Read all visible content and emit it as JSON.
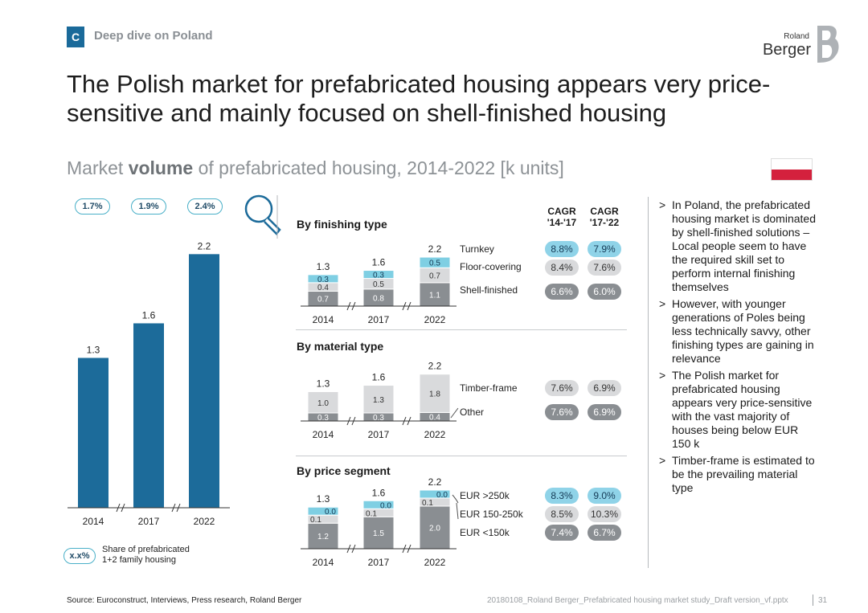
{
  "header": {
    "section_letter": "C",
    "section_title": "Deep dive on Poland",
    "logo_top": "Roland",
    "logo_bottom": "Berger",
    "title": "The Polish market for prefabricated housing appears very price-sensitive and mainly focused on shell-finished housing",
    "subtitle_pre": "Market ",
    "subtitle_bold": "volume",
    "subtitle_post": " of prefabricated housing, 2014-2022 [k units]"
  },
  "colors": {
    "accent": "#1a6a9a",
    "bar": "#1c6b9a",
    "turquoise": "#7fcfe3",
    "light_grey": "#d9dadc",
    "mid_grey": "#8a8e92",
    "flag_red": "#d4213d"
  },
  "legend": {
    "pill": "x.x%",
    "text_line1": "Share of prefabricated",
    "text_line2": "1+2 family housing"
  },
  "chart_data": [
    {
      "type": "bar",
      "name": "Total market volume",
      "categories": [
        "2014",
        "2017",
        "2022"
      ],
      "values": [
        1.3,
        1.6,
        2.2
      ],
      "value_labels": [
        "1.3",
        "1.6",
        "2.2"
      ],
      "share_of_housing": [
        "1.7%",
        "1.9%",
        "2.4%"
      ],
      "ylabel": "k units",
      "ylim": [
        0,
        2.4
      ]
    },
    {
      "type": "bar",
      "stacked": true,
      "title": "By finishing type",
      "categories": [
        "2014",
        "2017",
        "2022"
      ],
      "totals": [
        "1.3",
        "1.6",
        "2.2"
      ],
      "series": [
        {
          "name": "Shell-finished",
          "values": [
            0.7,
            0.8,
            1.1
          ],
          "labels": [
            "0.7",
            "0.8",
            "1.1"
          ],
          "cagr_14_17": "6.6%",
          "cagr_17_22": "6.0%"
        },
        {
          "name": "Floor-covering",
          "values": [
            0.4,
            0.5,
            0.7
          ],
          "labels": [
            "0.4",
            "0.5",
            "0.7"
          ],
          "cagr_14_17": "8.4%",
          "cagr_17_22": "7.6%"
        },
        {
          "name": "Turnkey",
          "values": [
            0.3,
            0.3,
            0.5
          ],
          "labels": [
            "0.3",
            "0.3",
            "0.5"
          ],
          "cagr_14_17": "8.8%",
          "cagr_17_22": "7.9%"
        }
      ]
    },
    {
      "type": "bar",
      "stacked": true,
      "title": "By material type",
      "categories": [
        "2014",
        "2017",
        "2022"
      ],
      "totals": [
        "1.3",
        "1.6",
        "2.2"
      ],
      "series": [
        {
          "name": "Other",
          "values": [
            0.3,
            0.3,
            0.4
          ],
          "labels": [
            "0.3",
            "0.3",
            "0.4"
          ],
          "cagr_14_17": "7.6%",
          "cagr_17_22": "6.9%"
        },
        {
          "name": "Timber-frame",
          "values": [
            1.0,
            1.3,
            1.8
          ],
          "labels": [
            "1.0",
            "1.3",
            "1.8"
          ],
          "cagr_14_17": "7.6%",
          "cagr_17_22": "6.9%"
        }
      ]
    },
    {
      "type": "bar",
      "stacked": true,
      "title": "By price segment",
      "categories": [
        "2014",
        "2017",
        "2022"
      ],
      "totals": [
        "1.3",
        "1.6",
        "2.2"
      ],
      "series": [
        {
          "name": "EUR <150k",
          "values": [
            1.2,
            1.5,
            2.0
          ],
          "labels": [
            "1.2",
            "1.5",
            "2.0"
          ],
          "cagr_14_17": "7.4%",
          "cagr_17_22": "6.7%"
        },
        {
          "name": "EUR 150-250k",
          "values": [
            0.1,
            0.1,
            0.1
          ],
          "labels": [
            "0.1",
            "0.1",
            "0.1"
          ],
          "cagr_14_17": "8.5%",
          "cagr_17_22": "10.3%"
        },
        {
          "name": "EUR >250k",
          "values": [
            0.0,
            0.0,
            0.0
          ],
          "labels": [
            "0.0",
            "0.0",
            "0.0"
          ],
          "cagr_14_17": "8.3%",
          "cagr_17_22": "9.0%"
        }
      ]
    }
  ],
  "cagr_headers": {
    "col1_line1": "CAGR",
    "col1_line2": "'14-'17",
    "col2_line1": "CAGR",
    "col2_line2": "'17-'22"
  },
  "bullets": [
    "In Poland, the prefabricated housing market is dominated by shell-finished solutions – Local people seem to have the required skill set to perform internal finishing themselves",
    "However, with younger generations of Poles being less technically savvy, other finishing types are gaining in relevance",
    "The Polish market for prefabricated housing appears very price-sensitive with the vast majority of houses being below EUR 150 k",
    "Timber-frame is estimated to be the prevailing material type"
  ],
  "bullet_marker": ">",
  "footer": {
    "source": "Source: Euroconstruct, Interviews, Press research, Roland Berger",
    "file": "20180108_Roland Berger_Prefabricated housing market study_Draft version_vf.pptx",
    "page": "31"
  }
}
